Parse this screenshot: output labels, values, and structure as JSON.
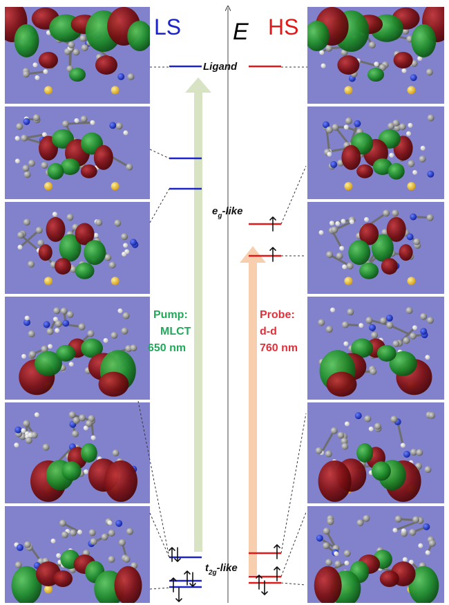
{
  "labels": {
    "ls": "LS",
    "energy": "E",
    "hs": "HS",
    "ligand": "Ligand",
    "eg_base": "e",
    "eg_sub": "g",
    "eg_suffix": "-like",
    "t2g_base": "t",
    "t2g_sub": "2g",
    "t2g_suffix": "-like"
  },
  "pump": {
    "line1": "Pump:",
    "line2": "MLCT",
    "line3": "650 nm",
    "color": "#22a85a",
    "arrow_color": "#d8e3c4"
  },
  "probe": {
    "line1": "Probe:",
    "line2": "d-d",
    "line3": "760 nm",
    "color": "#e0303a",
    "arrow_color": "#f8cfae"
  },
  "colors": {
    "ls_level": "#1a22c8",
    "hs_level": "#e01818",
    "panel_bg": "#8282cc",
    "lobe_red": "#7a1014",
    "lobe_green": "#1e8a2a",
    "atom_gray": "#8a8a8a",
    "atom_white": "#e8e8e8",
    "atom_blue": "#1830c8",
    "atom_yellow": "#f0c020"
  },
  "orbital_panels": {
    "left": [
      "ligand-orbital",
      "orbital-2",
      "orbital-3",
      "orbital-4",
      "orbital-5",
      "orbital-6"
    ],
    "right": [
      "ligand-orbital",
      "orbital-2",
      "orbital-3",
      "orbital-4",
      "orbital-5",
      "orbital-6"
    ]
  }
}
